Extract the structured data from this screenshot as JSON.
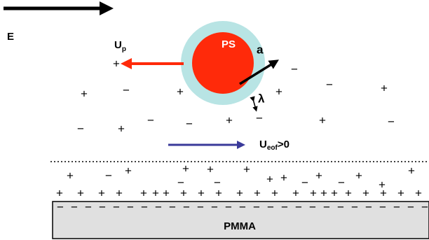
{
  "field": {
    "label": "E"
  },
  "particle": {
    "label": "PS",
    "radius_label": "a",
    "layer_label": "λ",
    "velocity": {
      "symbol": "U",
      "subscript": "p"
    }
  },
  "flow": {
    "symbol": "U",
    "subscript": "eof",
    "suffix": ">0"
  },
  "substrate": {
    "label": "PMMA"
  },
  "charges": {
    "bulk": [
      "+",
      "−",
      "−",
      "+",
      "+",
      "−",
      "+",
      "+",
      "−",
      "+",
      "−",
      "−",
      "+",
      "−",
      "+",
      "−"
    ],
    "diffuse": [
      "+",
      "−",
      "+",
      "+",
      "+",
      "+",
      "+",
      "+",
      "−",
      "+",
      "−",
      "+",
      "+",
      "+",
      "−",
      "−"
    ],
    "stern": [
      "+",
      "+",
      "+",
      "+",
      "+",
      "+",
      "+",
      "+",
      "+",
      "+",
      "+",
      "+",
      "+",
      "+",
      "+",
      "+",
      "+",
      "+",
      "+",
      "+",
      "+",
      "+"
    ],
    "surface": [
      "−",
      "−",
      "−",
      "−",
      "−",
      "−",
      "−",
      "−",
      "−",
      "−",
      "−",
      "−",
      "−",
      "−",
      "−",
      "−",
      "−",
      "−",
      "−",
      "−",
      "−",
      "−",
      "−",
      "−",
      "−",
      "−",
      "−"
    ]
  }
}
